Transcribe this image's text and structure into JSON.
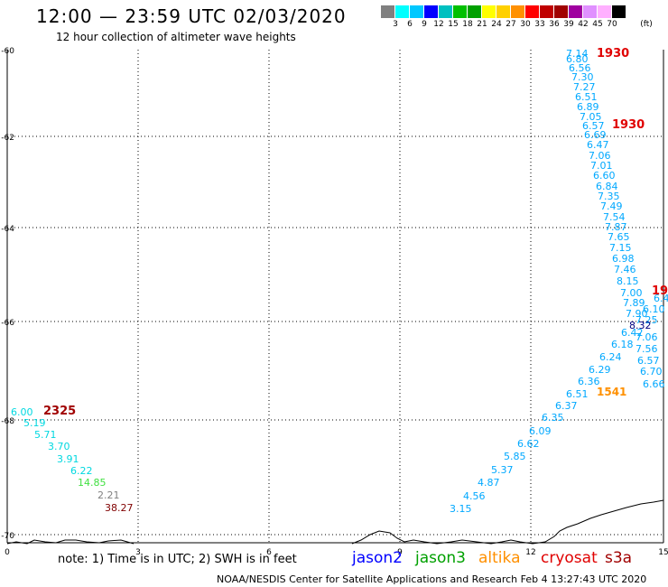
{
  "header": {
    "title": "12:00 — 23:59 UTC 02/03/2020",
    "subtitle": "12 hour collection of altimeter wave heights"
  },
  "colorbar": {
    "unit": "(ft)",
    "colors": [
      "#808080",
      "#00ffff",
      "#00c8ff",
      "#0000ff",
      "#00c0c0",
      "#00c000",
      "#00a000",
      "#ffff00",
      "#ffd000",
      "#ff9000",
      "#ff0000",
      "#c00000",
      "#a00000",
      "#a000a0",
      "#e090ff",
      "#ffb0ff",
      "#000000"
    ],
    "labels": [
      "3",
      "6",
      "9",
      "12",
      "15",
      "18",
      "21",
      "24",
      "27",
      "30",
      "33",
      "36",
      "39",
      "42",
      "45",
      "70"
    ]
  },
  "map": {
    "y_ticks": [
      "-60",
      "-62",
      "-64",
      "-66",
      "-68",
      "-70"
    ],
    "x_ticks": [
      "0",
      "3",
      "6",
      "9",
      "12",
      "15"
    ]
  },
  "readings": {
    "right_track": [
      "7.14",
      "6.80",
      "6.56",
      "7.30",
      "7.27",
      "6.51",
      "6.89",
      "7.05",
      "6.57",
      "6.69",
      "6.47",
      "7.06",
      "7.01",
      "6.60",
      "6.84",
      "7.35",
      "7.49",
      "7.54",
      "7.87",
      "7.65",
      "7.15",
      "6.98",
      "7.46",
      "8.15",
      "7.00",
      "7.89",
      "7.90",
      "6.42",
      "6.18",
      "6.24",
      "6.29",
      "6.36",
      "6.51",
      "6.37",
      "6.35",
      "6.09",
      "6.62",
      "5.85",
      "5.37",
      "4.87",
      "4.56",
      "3.15"
    ],
    "right_track_2": [
      "6.10",
      "7.25",
      "7.06",
      "7.56",
      "6.57",
      "6.70",
      "6.66"
    ],
    "dark_value": "8.32",
    "left_track": [
      "6.00",
      "5.19",
      "5.71",
      "3.70",
      "3.91",
      "6.22"
    ],
    "left_green": "14.85",
    "left_grey": "2.21",
    "left_dark": "38.27",
    "clipped_value": "6.4"
  },
  "time_labels": {
    "t1": "1930",
    "t2": "1930",
    "t3": "19",
    "t4": "1541",
    "t5": "2325"
  },
  "footer": {
    "note": "note: 1) Time is in UTC; 2) SWH is in feet",
    "credit": "NOAA/NESDIS Center for Satellite Applications and Research    Feb  4 13:27:43 UTC 2020"
  },
  "legend": [
    {
      "name": "jason2",
      "color": "#0000ff"
    },
    {
      "name": "jason3",
      "color": "#00a000"
    },
    {
      "name": "altika",
      "color": "#ff9000"
    },
    {
      "name": "cryosat",
      "color": "#e00000"
    },
    {
      "name": "s3a",
      "color": "#a00000"
    }
  ]
}
